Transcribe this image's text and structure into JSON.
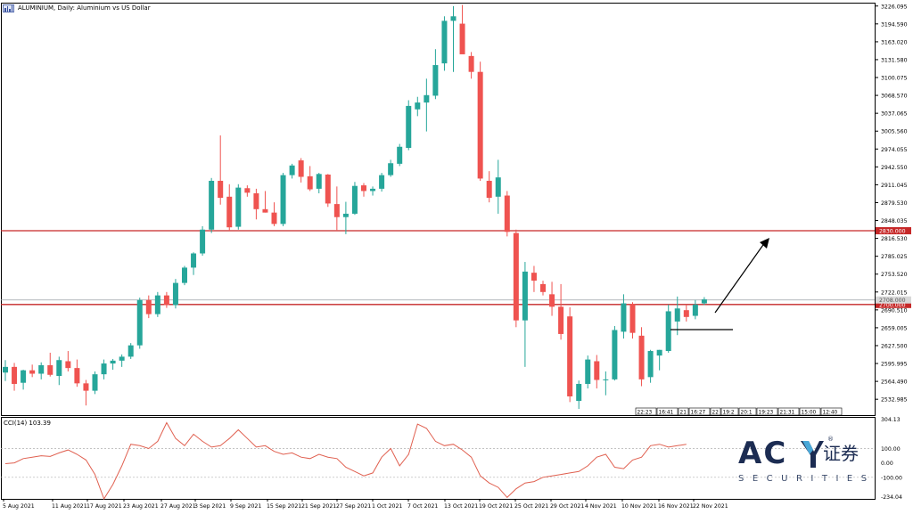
{
  "window": {
    "title": "ALUMINIUM, Daily: Aluminium vs US Dollar",
    "cci_label": "CCI(14) 103.39"
  },
  "colors": {
    "bull": "#26a69a",
    "bear": "#ef5350",
    "level_line": "#c62828",
    "cci_line": "#e06050",
    "grid": "#000000",
    "background": "#ffffff"
  },
  "chart_data": [
    {
      "type": "candlestick",
      "title": "",
      "xlabel": "",
      "ylabel": "",
      "ylim": [
        2505,
        3232
      ],
      "y_ticks": [
        "3226.095",
        "3194.590",
        "3163.020",
        "3131.580",
        "3100.075",
        "3068.570",
        "3037.065",
        "3005.560",
        "2974.055",
        "2942.550",
        "2911.045",
        "2879.530",
        "2848.035",
        "2816.530",
        "2785.025",
        "2753.520",
        "2722.015",
        "2690.510",
        "2659.005",
        "2627.500",
        "2595.995",
        "2564.490",
        "2532.985"
      ],
      "x_ticks": [
        "5 Aug 2021",
        "11 Aug 2021",
        "17 Aug 2021",
        "23 Aug 2021",
        "27 Aug 2021",
        "3 Sep 2021",
        "9 Sep 2021",
        "15 Sep 2021",
        "21 Sep 2021",
        "27 Sep 2021",
        "1 Oct 2021",
        "7 Oct 2021",
        "13 Oct 2021",
        "19 Oct 2021",
        "25 Oct 2021",
        "29 Oct 2021",
        "4 Nov 2021",
        "10 Nov 2021",
        "16 Nov 2021",
        "22 Nov 2021"
      ],
      "levels": [
        {
          "value": 2830.0,
          "label": "2830.000"
        },
        {
          "value": 2700.0,
          "label": "2700.000"
        }
      ],
      "current_price": {
        "value": 2708.0,
        "label": "2708.000"
      },
      "session_labels": [
        "22:23",
        "16:41",
        "21",
        "16:27",
        "22",
        "19:2",
        "20:1",
        "19:23",
        "21:31",
        "15:00",
        "12:40"
      ],
      "candles": [
        {
          "o": 2580,
          "h": 2602,
          "l": 2565,
          "c": 2590
        },
        {
          "o": 2590,
          "h": 2597,
          "l": 2548,
          "c": 2560
        },
        {
          "o": 2562,
          "h": 2585,
          "l": 2550,
          "c": 2584
        },
        {
          "o": 2584,
          "h": 2594,
          "l": 2572,
          "c": 2578
        },
        {
          "o": 2578,
          "h": 2598,
          "l": 2568,
          "c": 2593
        },
        {
          "o": 2593,
          "h": 2615,
          "l": 2573,
          "c": 2576
        },
        {
          "o": 2574,
          "h": 2608,
          "l": 2558,
          "c": 2602
        },
        {
          "o": 2600,
          "h": 2618,
          "l": 2582,
          "c": 2588
        },
        {
          "o": 2588,
          "h": 2603,
          "l": 2555,
          "c": 2561
        },
        {
          "o": 2561,
          "h": 2567,
          "l": 2522,
          "c": 2548
        },
        {
          "o": 2548,
          "h": 2582,
          "l": 2542,
          "c": 2577
        },
        {
          "o": 2577,
          "h": 2603,
          "l": 2568,
          "c": 2596
        },
        {
          "o": 2596,
          "h": 2604,
          "l": 2585,
          "c": 2601
        },
        {
          "o": 2601,
          "h": 2612,
          "l": 2590,
          "c": 2608
        },
        {
          "o": 2608,
          "h": 2632,
          "l": 2604,
          "c": 2628
        },
        {
          "o": 2628,
          "h": 2712,
          "l": 2622,
          "c": 2708
        },
        {
          "o": 2708,
          "h": 2716,
          "l": 2676,
          "c": 2683
        },
        {
          "o": 2683,
          "h": 2722,
          "l": 2678,
          "c": 2716
        },
        {
          "o": 2716,
          "h": 2722,
          "l": 2694,
          "c": 2699
        },
        {
          "o": 2699,
          "h": 2745,
          "l": 2693,
          "c": 2738
        },
        {
          "o": 2738,
          "h": 2768,
          "l": 2734,
          "c": 2765
        },
        {
          "o": 2765,
          "h": 2792,
          "l": 2752,
          "c": 2790
        },
        {
          "o": 2790,
          "h": 2838,
          "l": 2786,
          "c": 2832
        },
        {
          "o": 2832,
          "h": 2923,
          "l": 2826,
          "c": 2918
        },
        {
          "o": 2918,
          "h": 2998,
          "l": 2876,
          "c": 2888
        },
        {
          "o": 2890,
          "h": 2912,
          "l": 2830,
          "c": 2836
        },
        {
          "o": 2837,
          "h": 2912,
          "l": 2832,
          "c": 2906
        },
        {
          "o": 2905,
          "h": 2910,
          "l": 2890,
          "c": 2897
        },
        {
          "o": 2896,
          "h": 2904,
          "l": 2850,
          "c": 2868
        },
        {
          "o": 2868,
          "h": 2900,
          "l": 2862,
          "c": 2862
        },
        {
          "o": 2862,
          "h": 2880,
          "l": 2838,
          "c": 2842
        },
        {
          "o": 2842,
          "h": 2932,
          "l": 2838,
          "c": 2928
        },
        {
          "o": 2928,
          "h": 2948,
          "l": 2922,
          "c": 2945
        },
        {
          "o": 2954,
          "h": 2958,
          "l": 2915,
          "c": 2925
        },
        {
          "o": 2926,
          "h": 2944,
          "l": 2900,
          "c": 2903
        },
        {
          "o": 2904,
          "h": 2932,
          "l": 2896,
          "c": 2930
        },
        {
          "o": 2929,
          "h": 2930,
          "l": 2872,
          "c": 2878
        },
        {
          "o": 2877,
          "h": 2908,
          "l": 2830,
          "c": 2854
        },
        {
          "o": 2854,
          "h": 2881,
          "l": 2824,
          "c": 2860
        },
        {
          "o": 2860,
          "h": 2916,
          "l": 2858,
          "c": 2909
        },
        {
          "o": 2910,
          "h": 2914,
          "l": 2890,
          "c": 2900
        },
        {
          "o": 2900,
          "h": 2908,
          "l": 2892,
          "c": 2904
        },
        {
          "o": 2904,
          "h": 2932,
          "l": 2899,
          "c": 2928
        },
        {
          "o": 2928,
          "h": 2955,
          "l": 2925,
          "c": 2949
        },
        {
          "o": 2948,
          "h": 2983,
          "l": 2944,
          "c": 2978
        },
        {
          "o": 2976,
          "h": 3060,
          "l": 2972,
          "c": 3050
        },
        {
          "o": 3044,
          "h": 3066,
          "l": 3032,
          "c": 3056
        },
        {
          "o": 3056,
          "h": 3098,
          "l": 3005,
          "c": 3069
        },
        {
          "o": 3068,
          "h": 3150,
          "l": 3062,
          "c": 3122
        },
        {
          "o": 3125,
          "h": 3208,
          "l": 3112,
          "c": 3200
        },
        {
          "o": 3200,
          "h": 3226,
          "l": 3110,
          "c": 3208
        },
        {
          "o": 3195,
          "h": 3228,
          "l": 3148,
          "c": 3141
        },
        {
          "o": 3138,
          "h": 3145,
          "l": 3098,
          "c": 3110
        },
        {
          "o": 3110,
          "h": 3128,
          "l": 2918,
          "c": 2922
        },
        {
          "o": 2918,
          "h": 2935,
          "l": 2880,
          "c": 2888
        },
        {
          "o": 2890,
          "h": 2955,
          "l": 2860,
          "c": 2924
        },
        {
          "o": 2892,
          "h": 2900,
          "l": 2820,
          "c": 2828
        },
        {
          "o": 2826,
          "h": 2832,
          "l": 2660,
          "c": 2672
        },
        {
          "o": 2672,
          "h": 2775,
          "l": 2590,
          "c": 2758
        },
        {
          "o": 2756,
          "h": 2768,
          "l": 2722,
          "c": 2742
        },
        {
          "o": 2736,
          "h": 2742,
          "l": 2716,
          "c": 2722
        },
        {
          "o": 2718,
          "h": 2740,
          "l": 2680,
          "c": 2696
        },
        {
          "o": 2696,
          "h": 2736,
          "l": 2638,
          "c": 2648
        },
        {
          "o": 2679,
          "h": 2695,
          "l": 2528,
          "c": 2538
        },
        {
          "o": 2530,
          "h": 2566,
          "l": 2516,
          "c": 2560
        },
        {
          "o": 2560,
          "h": 2610,
          "l": 2552,
          "c": 2603
        },
        {
          "o": 2600,
          "h": 2611,
          "l": 2552,
          "c": 2567
        },
        {
          "o": 2568,
          "h": 2582,
          "l": 2540,
          "c": 2568
        },
        {
          "o": 2568,
          "h": 2662,
          "l": 2566,
          "c": 2655
        },
        {
          "o": 2652,
          "h": 2718,
          "l": 2640,
          "c": 2702
        },
        {
          "o": 2701,
          "h": 2704,
          "l": 2640,
          "c": 2650
        },
        {
          "o": 2645,
          "h": 2660,
          "l": 2556,
          "c": 2568
        },
        {
          "o": 2572,
          "h": 2620,
          "l": 2562,
          "c": 2618
        },
        {
          "o": 2610,
          "h": 2620,
          "l": 2584,
          "c": 2620
        },
        {
          "o": 2618,
          "h": 2700,
          "l": 2615,
          "c": 2688
        },
        {
          "o": 2670,
          "h": 2714,
          "l": 2646,
          "c": 2693
        },
        {
          "o": 2690,
          "h": 2700,
          "l": 2670,
          "c": 2678
        },
        {
          "o": 2680,
          "h": 2708,
          "l": 2674,
          "c": 2700
        },
        {
          "o": 2702,
          "h": 2713,
          "l": 2699,
          "c": 2709
        }
      ]
    },
    {
      "type": "line",
      "title": "",
      "ylim": [
        -250,
        320
      ],
      "y_ticks": [
        "304.13",
        "100.00",
        "0.00",
        "-100.00",
        "-234.04"
      ],
      "reference_lines": [
        100,
        -100
      ],
      "series": [
        {
          "values": [
            -5,
            0,
            30,
            40,
            50,
            45,
            70,
            90,
            60,
            20,
            -80,
            -250,
            -150,
            -20,
            130,
            120,
            100,
            150,
            280,
            170,
            120,
            200,
            150,
            110,
            120,
            170,
            230,
            170,
            110,
            120,
            80,
            60,
            70,
            40,
            30,
            60,
            40,
            30,
            -30,
            -60,
            -90,
            -70,
            40,
            100,
            -20,
            60,
            270,
            240,
            150,
            120,
            130,
            90,
            40,
            -90,
            -140,
            -170,
            -240,
            -180,
            -140,
            -130,
            -100,
            -90,
            -80,
            -70,
            -60,
            -20,
            40,
            60,
            -30,
            -40,
            20,
            40,
            120,
            130,
            110,
            120,
            130
          ]
        }
      ]
    }
  ]
}
